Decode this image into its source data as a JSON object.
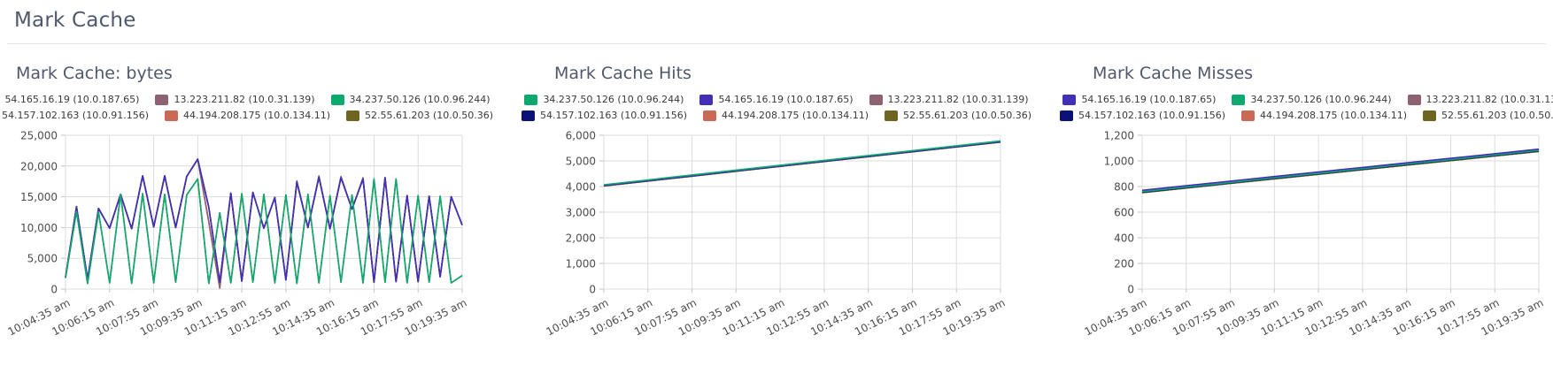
{
  "page": {
    "title": "Mark Cache"
  },
  "colors": {
    "purple": "#4130b5",
    "mauve": "#8d6273",
    "green": "#0caa70",
    "navy": "#0c1178",
    "salmon": "#c96a57",
    "olive": "#6f6522",
    "grid": "#dcdcdc",
    "axis": "#c2c2c2"
  },
  "chart_data": [
    {
      "type": "line",
      "title": "Mark Cache: bytes",
      "grid": true,
      "legend_position": "top",
      "ylim": [
        0,
        25000
      ],
      "y_tick_step": 5000,
      "x_tick_every": 4,
      "x_labels": [
        "10:04:35 am",
        "10:06:15 am",
        "10:07:55 am",
        "10:09:35 am",
        "10:11:15 am",
        "10:12:55 am",
        "10:14:35 am",
        "10:16:15 am",
        "10:17:55 am",
        "10:19:35 am"
      ],
      "legend": [
        {
          "label": "54.165.16.19 (10.0.187.65)",
          "color": "#4130b5"
        },
        {
          "label": "13.223.211.82 (10.0.31.139)",
          "color": "#8d6273"
        },
        {
          "label": "34.237.50.126 (10.0.96.244)",
          "color": "#0caa70"
        },
        {
          "label": "54.157.102.163 (10.0.91.156)",
          "color": "#0c1178"
        },
        {
          "label": "44.194.208.175 (10.0.134.11)",
          "color": "#c96a57"
        },
        {
          "label": "52.55.61.203 (10.0.50.36)",
          "color": "#6f6522"
        }
      ],
      "series": [
        {
          "name": "52.55.61.203 (10.0.50.36)",
          "color": "#6f6522",
          "values": [
            1800,
            12600,
            900,
            12500,
            1000,
            15400,
            900,
            15500,
            1000,
            15400,
            1100,
            15300,
            17900,
            900,
            12400,
            1000,
            15500,
            1100,
            15400,
            1000,
            15300,
            900,
            15400,
            1000,
            15200,
            1100,
            15300,
            1000,
            17900,
            1100,
            17900,
            1000,
            15200,
            1100,
            15100,
            1000,
            2200
          ]
        },
        {
          "name": "44.194.208.175 (10.0.134.11)",
          "color": "#c96a57",
          "values": [
            1900,
            13400,
            1600,
            13100,
            9900,
            15400,
            9800,
            18400,
            10100,
            18400,
            10000,
            18300,
            21100,
            10800,
            250,
            15600,
            1300,
            15700,
            9900,
            14900,
            1500,
            17400,
            10000,
            18200,
            9800,
            18100,
            13000,
            17900,
            1100,
            18100,
            1200,
            15200,
            1200,
            15100,
            2000,
            15000,
            10400
          ]
        },
        {
          "name": "54.157.102.163 (10.0.91.156)",
          "color": "#0c1178",
          "values": [
            1900,
            13400,
            1600,
            13100,
            9900,
            15400,
            9800,
            18400,
            10100,
            18400,
            10000,
            18300,
            21100,
            13300,
            1100,
            15600,
            1300,
            15700,
            9900,
            14900,
            1500,
            17400,
            10000,
            18200,
            9800,
            18100,
            13000,
            17900,
            1100,
            18100,
            1200,
            15200,
            1200,
            15100,
            2000,
            15000,
            10400
          ]
        },
        {
          "name": "13.223.211.82 (10.0.31.139)",
          "color": "#8d6273",
          "values": [
            1900,
            13400,
            1600,
            13100,
            9900,
            15400,
            9800,
            18400,
            10100,
            18400,
            10000,
            18300,
            21100,
            11000,
            150,
            15600,
            1300,
            15700,
            9900,
            14900,
            1500,
            17600,
            10000,
            18400,
            9800,
            18300,
            13000,
            18100,
            1100,
            18100,
            1200,
            15200,
            1200,
            15100,
            2000,
            15000,
            10400
          ]
        },
        {
          "name": "54.165.16.19 (10.0.187.65)",
          "color": "#4130b5",
          "values": [
            1900,
            13400,
            1600,
            13100,
            9900,
            15400,
            9800,
            18400,
            10100,
            18400,
            10000,
            18300,
            21100,
            13300,
            1100,
            15600,
            1300,
            15700,
            9900,
            14900,
            1500,
            17400,
            10000,
            18200,
            9800,
            18100,
            13000,
            17900,
            1100,
            18100,
            1200,
            15200,
            1200,
            15100,
            2000,
            15000,
            10400
          ]
        },
        {
          "name": "34.237.50.126 (10.0.96.244)",
          "color": "#0caa70",
          "values": [
            1800,
            12600,
            900,
            12500,
            1000,
            15400,
            900,
            15500,
            1000,
            15400,
            1100,
            15300,
            17900,
            900,
            12400,
            1000,
            15500,
            1100,
            15400,
            1000,
            15300,
            900,
            15400,
            1000,
            15200,
            1100,
            15300,
            1000,
            17900,
            1100,
            17900,
            1000,
            15200,
            1100,
            15100,
            1000,
            2200
          ]
        }
      ]
    },
    {
      "type": "line",
      "title": "Mark Cache Hits",
      "grid": true,
      "legend_position": "top",
      "ylim": [
        0,
        6000
      ],
      "y_tick_step": 1000,
      "x_tick_every": 1,
      "x_labels": [
        "10:04:35 am",
        "10:06:15 am",
        "10:07:55 am",
        "10:09:35 am",
        "10:11:15 am",
        "10:12:55 am",
        "10:14:35 am",
        "10:16:15 am",
        "10:17:55 am",
        "10:19:35 am"
      ],
      "legend": [
        {
          "label": "34.237.50.126 (10.0.96.244)",
          "color": "#0caa70"
        },
        {
          "label": "54.165.16.19 (10.0.187.65)",
          "color": "#4130b5"
        },
        {
          "label": "13.223.211.82 (10.0.31.139)",
          "color": "#8d6273"
        },
        {
          "label": "54.157.102.163 (10.0.91.156)",
          "color": "#0c1178"
        },
        {
          "label": "44.194.208.175 (10.0.134.11)",
          "color": "#c96a57"
        },
        {
          "label": "52.55.61.203 (10.0.50.36)",
          "color": "#6f6522"
        }
      ],
      "series": [
        {
          "name": "13.223.211.82 (10.0.31.139)",
          "color": "#8d6273",
          "values": [
            4025,
            4215,
            4405,
            4595,
            4785,
            4975,
            5165,
            5355,
            5545,
            5735
          ]
        },
        {
          "name": "44.194.208.175 (10.0.134.11)",
          "color": "#c96a57",
          "values": [
            4025,
            4215,
            4405,
            4595,
            4785,
            4975,
            5165,
            5355,
            5545,
            5735
          ]
        },
        {
          "name": "52.55.61.203 (10.0.50.36)",
          "color": "#6f6522",
          "values": [
            4025,
            4215,
            4405,
            4595,
            4785,
            4975,
            5165,
            5355,
            5545,
            5735
          ]
        },
        {
          "name": "54.157.102.163 (10.0.91.156)",
          "color": "#0c1178",
          "values": [
            4035,
            4225,
            4415,
            4605,
            4795,
            4985,
            5175,
            5365,
            5555,
            5745
          ]
        },
        {
          "name": "54.165.16.19 (10.0.187.65)",
          "color": "#4130b5",
          "values": [
            4045,
            4235,
            4425,
            4615,
            4805,
            4995,
            5185,
            5375,
            5565,
            5755
          ]
        },
        {
          "name": "34.237.50.126 (10.0.96.244)",
          "color": "#0caa70",
          "values": [
            4070,
            4260,
            4450,
            4640,
            4830,
            5020,
            5210,
            5400,
            5590,
            5780
          ]
        }
      ]
    },
    {
      "type": "line",
      "title": "Mark Cache Misses",
      "grid": true,
      "legend_position": "top",
      "ylim": [
        0,
        1200
      ],
      "y_tick_step": 200,
      "x_tick_every": 1,
      "x_labels": [
        "10:04:35 am",
        "10:06:15 am",
        "10:07:55 am",
        "10:09:35 am",
        "10:11:15 am",
        "10:12:55 am",
        "10:14:35 am",
        "10:16:15 am",
        "10:17:55 am",
        "10:19:35 am"
      ],
      "legend": [
        {
          "label": "54.165.16.19 (10.0.187.65)",
          "color": "#4130b5"
        },
        {
          "label": "34.237.50.126 (10.0.96.244)",
          "color": "#0caa70"
        },
        {
          "label": "13.223.211.82 (10.0.31.139)",
          "color": "#8d6273"
        },
        {
          "label": "54.157.102.163 (10.0.91.156)",
          "color": "#0c1178"
        },
        {
          "label": "44.194.208.175 (10.0.134.11)",
          "color": "#c96a57"
        },
        {
          "label": "52.55.61.203 (10.0.50.36)",
          "color": "#6f6522"
        }
      ],
      "series": [
        {
          "name": "13.223.211.82 (10.0.31.139)",
          "color": "#8d6273",
          "values": [
            752,
            788,
            824,
            860,
            895,
            931,
            967,
            1002,
            1038,
            1074
          ]
        },
        {
          "name": "44.194.208.175 (10.0.134.11)",
          "color": "#c96a57",
          "values": [
            752,
            788,
            824,
            860,
            895,
            931,
            967,
            1002,
            1038,
            1074
          ]
        },
        {
          "name": "52.55.61.203 (10.0.50.36)",
          "color": "#6f6522",
          "values": [
            752,
            788,
            824,
            860,
            895,
            931,
            967,
            1002,
            1038,
            1074
          ]
        },
        {
          "name": "54.157.102.163 (10.0.91.156)",
          "color": "#0c1178",
          "values": [
            756,
            792,
            828,
            864,
            899,
            935,
            971,
            1006,
            1042,
            1078
          ]
        },
        {
          "name": "34.237.50.126 (10.0.96.244)",
          "color": "#0caa70",
          "values": [
            760,
            796,
            832,
            868,
            903,
            939,
            975,
            1010,
            1046,
            1082
          ]
        },
        {
          "name": "54.165.16.19 (10.0.187.65)",
          "color": "#4130b5",
          "values": [
            770,
            806,
            842,
            878,
            913,
            949,
            985,
            1020,
            1056,
            1092
          ]
        }
      ]
    }
  ]
}
